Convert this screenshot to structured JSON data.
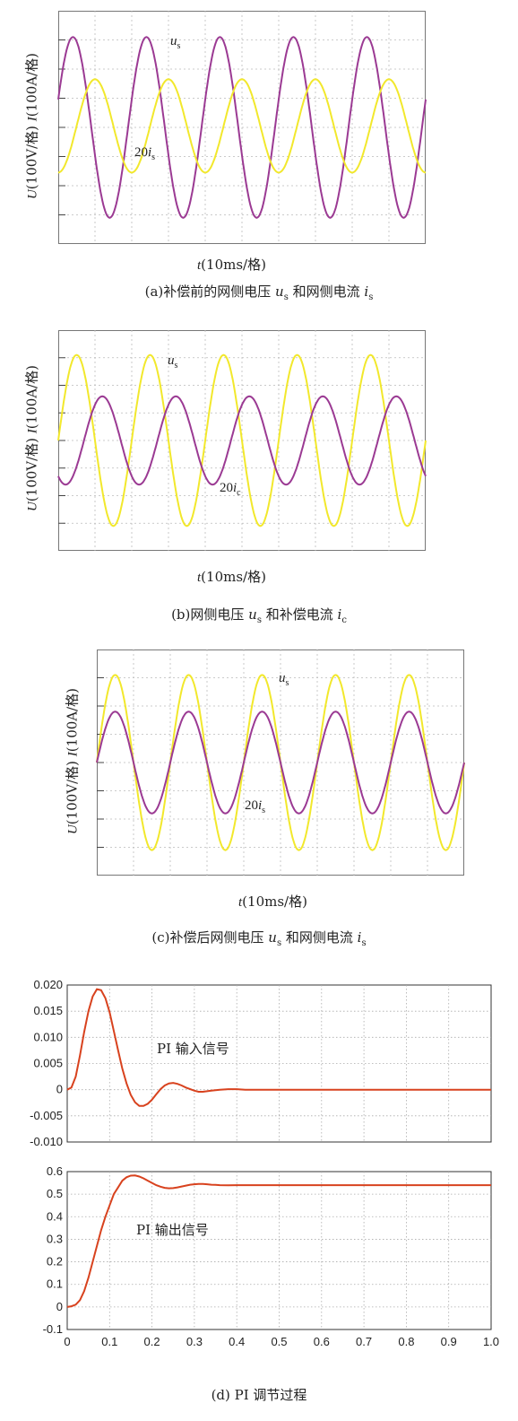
{
  "chart_data": [
    {
      "type": "line",
      "id": "a",
      "caption_prefix": "(a)补偿前的网侧电压 ",
      "caption_sym1": "u",
      "caption_sub1": "s",
      "caption_mid": " 和网侧电流 ",
      "caption_sym2": "i",
      "caption_sub2": "s",
      "ylabel_U": "U",
      "ylabel_U_unit": "(100V/格)",
      "ylabel_I": "I",
      "ylabel_I_unit": "(100A/格)",
      "xlabel_t": "t",
      "xlabel_unit": "(10ms/格)",
      "series": [
        {
          "name": "us",
          "label_sym": "u",
          "label_sub": "s",
          "label_prefix": "",
          "color": "#9b3a93",
          "amplitude": 3.1,
          "offset": 0,
          "phase": 0.05,
          "periods": 5.0
        },
        {
          "name": "20is",
          "label_sym": "i",
          "label_sub": "s",
          "label_prefix": "20",
          "color": "#f2e82c",
          "amplitude": 1.6,
          "offset": 0.05,
          "phase": -0.25,
          "periods": 5.0
        }
      ],
      "ylim": [
        -4,
        4
      ],
      "grid": true
    },
    {
      "type": "line",
      "id": "b",
      "caption_prefix": "(b)网侧电压 ",
      "caption_sym1": "u",
      "caption_sub1": "s",
      "caption_mid": " 和补偿电流 ",
      "caption_sym2": "i",
      "caption_sub2": "c",
      "ylabel_U": "U",
      "ylabel_U_unit": "(100V/格)",
      "ylabel_I": "I",
      "ylabel_I_unit": "(100A/格)",
      "xlabel_t": "t",
      "xlabel_unit": "(10ms/格)",
      "series": [
        {
          "name": "us",
          "label_sym": "u",
          "label_sub": "s",
          "label_prefix": "",
          "color": "#f2e82c",
          "amplitude": 3.1,
          "offset": 0,
          "phase": 0.0,
          "periods": 5.0
        },
        {
          "name": "20ic",
          "label_sym": "i",
          "label_sub": "c",
          "label_prefix": "20",
          "color": "#9b3a93",
          "amplitude": 1.6,
          "offset": 0.0,
          "phase": -0.35,
          "periods": 5.0
        }
      ],
      "ylim": [
        -4,
        4
      ],
      "grid": true
    },
    {
      "type": "line",
      "id": "c",
      "caption_prefix": "(c)补偿后网侧电压 ",
      "caption_sym1": "u",
      "caption_sub1": "s",
      "caption_mid": " 和网侧电流 ",
      "caption_sym2": "i",
      "caption_sub2": "s",
      "ylabel_U": "U",
      "ylabel_U_unit": "(100V/格)",
      "ylabel_I": "I",
      "ylabel_I_unit": "(100A/格)",
      "xlabel_t": "t",
      "xlabel_unit": "(10ms/格)",
      "series": [
        {
          "name": "us",
          "label_sym": "u",
          "label_sub": "s",
          "label_prefix": "",
          "color": "#f2e82c",
          "amplitude": 3.1,
          "offset": 0,
          "phase": 0.0,
          "periods": 5.0
        },
        {
          "name": "20is",
          "label_sym": "i",
          "label_sub": "s",
          "label_prefix": "20",
          "color": "#9b3a93",
          "amplitude": 1.8,
          "offset": 0.0,
          "phase": 0.0,
          "periods": 5.0
        }
      ],
      "ylim": [
        -4,
        4
      ],
      "grid": true
    },
    {
      "type": "line",
      "id": "d_top",
      "annotation": "PI 输入信号",
      "series": [
        {
          "color": "#d8421e",
          "x": [
            0,
            0.01,
            0.02,
            0.03,
            0.04,
            0.05,
            0.06,
            0.07,
            0.08,
            0.09,
            0.1,
            0.11,
            0.12,
            0.13,
            0.14,
            0.15,
            0.16,
            0.17,
            0.18,
            0.19,
            0.2,
            0.21,
            0.22,
            0.23,
            0.24,
            0.25,
            0.26,
            0.27,
            0.28,
            0.29,
            0.3,
            0.31,
            0.32,
            0.33,
            0.34,
            0.35,
            0.36,
            0.38,
            0.4,
            0.42,
            0.44,
            0.46,
            0.48,
            0.5,
            0.6,
            0.7,
            0.8,
            0.9,
            1.0
          ],
          "y": [
            0,
            0.0004,
            0.0025,
            0.0065,
            0.011,
            0.015,
            0.0178,
            0.0192,
            0.019,
            0.0175,
            0.0148,
            0.0112,
            0.0075,
            0.004,
            0.0012,
            -0.001,
            -0.0024,
            -0.0031,
            -0.0031,
            -0.0027,
            -0.0019,
            -0.0009,
            0.0001,
            0.0008,
            0.0012,
            0.0013,
            0.0011,
            0.0008,
            0.0004,
            0.0001,
            -0.0002,
            -0.0004,
            -0.0004,
            -0.0003,
            -0.0002,
            -0.0001,
            0.0,
            0.0001,
            0.0001,
            0.0,
            0.0,
            0.0,
            0.0,
            0.0,
            0.0,
            0.0,
            0.0,
            0.0,
            0.0
          ]
        }
      ],
      "yticks": [
        "0.020",
        "0.015",
        "0.010",
        "0.005",
        "0",
        "-0.005",
        "-0.010"
      ],
      "ylim": [
        -0.01,
        0.02
      ],
      "xlim": [
        0,
        1.0
      ],
      "grid": true
    },
    {
      "type": "line",
      "id": "d_bottom",
      "annotation": "PI 输出信号",
      "series": [
        {
          "color": "#d8421e",
          "x": [
            0,
            0.01,
            0.02,
            0.03,
            0.04,
            0.05,
            0.06,
            0.07,
            0.08,
            0.09,
            0.1,
            0.11,
            0.12,
            0.13,
            0.14,
            0.15,
            0.16,
            0.17,
            0.18,
            0.19,
            0.2,
            0.21,
            0.22,
            0.23,
            0.24,
            0.25,
            0.26,
            0.27,
            0.28,
            0.29,
            0.3,
            0.31,
            0.32,
            0.33,
            0.34,
            0.35,
            0.36,
            0.38,
            0.4,
            0.45,
            0.5,
            0.6,
            0.7,
            0.8,
            0.9,
            1.0
          ],
          "y": [
            0,
            0.003,
            0.01,
            0.03,
            0.07,
            0.13,
            0.2,
            0.27,
            0.34,
            0.4,
            0.45,
            0.5,
            0.53,
            0.56,
            0.575,
            0.582,
            0.583,
            0.578,
            0.57,
            0.56,
            0.55,
            0.54,
            0.533,
            0.528,
            0.526,
            0.527,
            0.53,
            0.534,
            0.538,
            0.542,
            0.544,
            0.545,
            0.545,
            0.544,
            0.542,
            0.541,
            0.54,
            0.539,
            0.54,
            0.54,
            0.54,
            0.54,
            0.54,
            0.54,
            0.54,
            0.54
          ]
        }
      ],
      "yticks": [
        "0.6",
        "0.5",
        "0.4",
        "0.3",
        "0.2",
        "0.1",
        "0",
        "-0.1"
      ],
      "xticks": [
        "0",
        "0.1",
        "0.2",
        "0.3",
        "0.4",
        "0.5",
        "0.6",
        "0.7",
        "0.8",
        "0.9",
        "1.0"
      ],
      "ylim": [
        -0.1,
        0.6
      ],
      "xlim": [
        0,
        1.0
      ],
      "grid": true
    }
  ],
  "caption_d": "(d) PI 调节过程"
}
